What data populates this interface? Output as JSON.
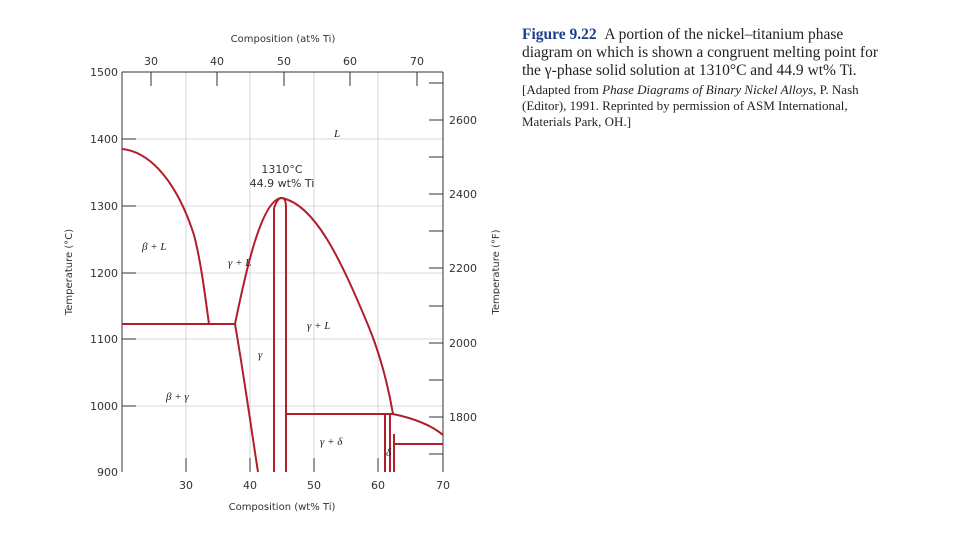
{
  "figure": {
    "number": "Figure 9.22",
    "caption": "A portion of the nickel–titanium phase diagram on which is shown a congruent melting point for the γ-phase solid solution at 1310°C and 44.9 wt% Ti.",
    "credit_prefix": "[Adapted from ",
    "credit_title": "Phase Diagrams of Binary Nickel Alloys",
    "credit_suffix": ", P. Nash (Editor), 1991. Reprinted by permission of ASM International, Materials Park, OH.]"
  },
  "axes": {
    "top_label": "Composition (at% Ti)",
    "top_ticks": [
      "30",
      "40",
      "50",
      "60",
      "70"
    ],
    "bottom_label": "Composition (wt% Ti)",
    "bottom_ticks": [
      "30",
      "40",
      "50",
      "60",
      "70"
    ],
    "left_label": "Temperature (°C)",
    "left_ticks": [
      "1500",
      "1400",
      "1300",
      "1200",
      "1100",
      "1000",
      "900"
    ],
    "right_label": "Temperature (°F)",
    "right_ticks": [
      "2600",
      "2400",
      "2200",
      "2000",
      "1800"
    ]
  },
  "regions": {
    "liquid": "L",
    "beta_liquid": "β + L",
    "gamma_liquid_left": "γ + L",
    "gamma_liquid_right": "γ + L",
    "gamma": "γ",
    "beta_gamma": "β + γ",
    "gamma_delta": "γ + δ",
    "delta": "δ"
  },
  "annotation": {
    "temperature": "1310°C",
    "composition": "44.9 wt% Ti"
  },
  "colors": {
    "phase_boundary": "#b01e2a",
    "grid": "#cccccc",
    "axis": "#333333",
    "figure_label": "#1a3f8a"
  }
}
